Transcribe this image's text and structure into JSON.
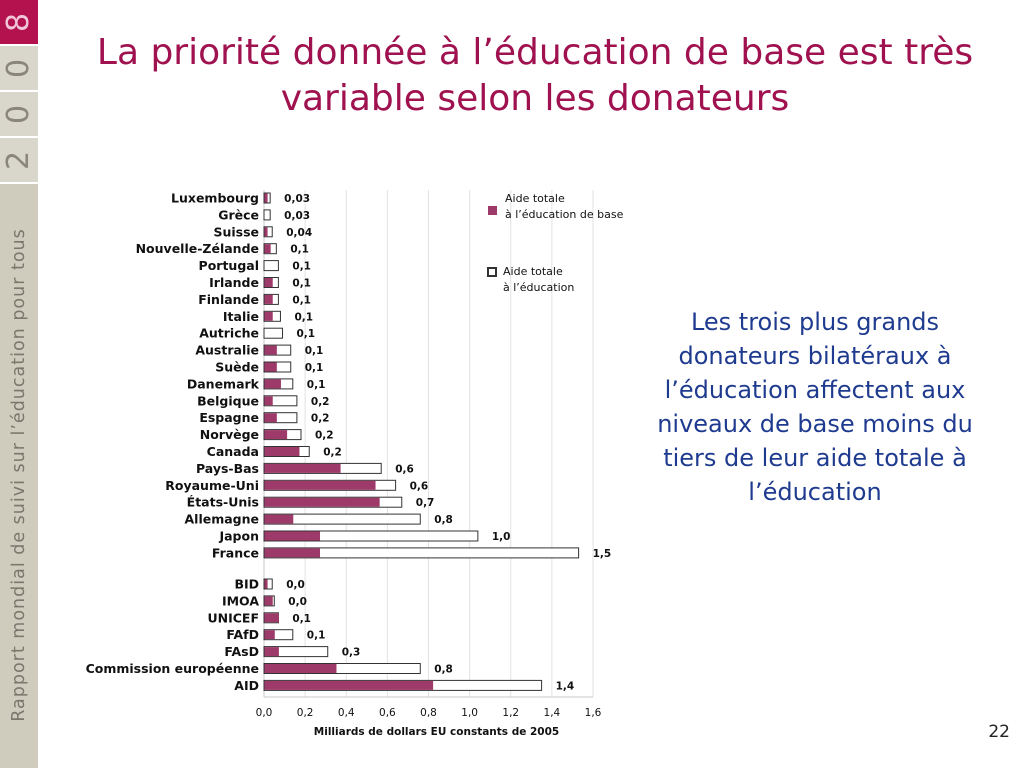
{
  "slide": {
    "title": "La priorité donnée à l’éducation de base est très variable selon les donateurs",
    "side_text": "Les trois plus grands donateurs bilatéraux à l’éducation affectent aux niveaux de base moins du tiers de leur aide totale à l’éducation",
    "page_number": "22"
  },
  "sidebar": {
    "year_digits": [
      "8",
      "0",
      "0",
      "2"
    ],
    "report_name": "Rapport mondial de suivi sur l’éducation pour tous",
    "accent_color": "#b3124f"
  },
  "chart_data": {
    "type": "bar",
    "orientation": "horizontal",
    "xlabel": "Milliards de dollars EU constants de 2005",
    "xlim": [
      0,
      1.6
    ],
    "xticks": [
      "0,0",
      "0,2",
      "0,4",
      "0,6",
      "0,8",
      "1,0",
      "1,2",
      "1,4",
      "1,6"
    ],
    "grid": "vertical",
    "legend_position": "top-right",
    "series": [
      {
        "name": "Aide totale à l’éducation de base",
        "legend_lines": [
          "Aide totale",
          "à l’éducation de base"
        ],
        "color": "#9e3a6a"
      },
      {
        "name": "Aide totale à l’éducation",
        "legend_lines": [
          "Aide totale",
          "à l’éducation"
        ],
        "color": "#ffffff"
      }
    ],
    "groups": [
      {
        "rows": [
          {
            "label": "Luxembourg",
            "total": 0.03,
            "basic": 0.015,
            "value_label": "0,03"
          },
          {
            "label": "Grèce",
            "total": 0.03,
            "basic": 0.0,
            "value_label": "0,03"
          },
          {
            "label": "Suisse",
            "total": 0.04,
            "basic": 0.015,
            "value_label": "0,04"
          },
          {
            "label": "Nouvelle-Zélande",
            "total": 0.06,
            "basic": 0.03,
            "value_label": "0,1"
          },
          {
            "label": "Portugal",
            "total": 0.07,
            "basic": 0.0,
            "value_label": "0,1"
          },
          {
            "label": "Irlande",
            "total": 0.07,
            "basic": 0.04,
            "value_label": "0,1"
          },
          {
            "label": "Finlande",
            "total": 0.07,
            "basic": 0.04,
            "value_label": "0,1"
          },
          {
            "label": "Italie",
            "total": 0.08,
            "basic": 0.04,
            "value_label": "0,1"
          },
          {
            "label": "Autriche",
            "total": 0.09,
            "basic": 0.0,
            "value_label": "0,1"
          },
          {
            "label": "Australie",
            "total": 0.13,
            "basic": 0.06,
            "value_label": "0,1"
          },
          {
            "label": "Suède",
            "total": 0.13,
            "basic": 0.06,
            "value_label": "0,1"
          },
          {
            "label": "Danemark",
            "total": 0.14,
            "basic": 0.08,
            "value_label": "0,1"
          },
          {
            "label": "Belgique",
            "total": 0.16,
            "basic": 0.04,
            "value_label": "0,2"
          },
          {
            "label": "Espagne",
            "total": 0.16,
            "basic": 0.06,
            "value_label": "0,2"
          },
          {
            "label": "Norvège",
            "total": 0.18,
            "basic": 0.11,
            "value_label": "0,2"
          },
          {
            "label": "Canada",
            "total": 0.22,
            "basic": 0.17,
            "value_label": "0,2"
          },
          {
            "label": "Pays-Bas",
            "total": 0.57,
            "basic": 0.37,
            "value_label": "0,6"
          },
          {
            "label": "Royaume-Uni",
            "total": 0.64,
            "basic": 0.54,
            "value_label": "0,6"
          },
          {
            "label": "États-Unis",
            "total": 0.67,
            "basic": 0.56,
            "value_label": "0,7"
          },
          {
            "label": "Allemagne",
            "total": 0.76,
            "basic": 0.14,
            "value_label": "0,8"
          },
          {
            "label": "Japon",
            "total": 1.04,
            "basic": 0.27,
            "value_label": "1,0"
          },
          {
            "label": "France",
            "total": 1.53,
            "basic": 0.27,
            "value_label": "1,5"
          }
        ]
      },
      {
        "rows": [
          {
            "label": "BID",
            "total": 0.04,
            "basic": 0.015,
            "value_label": "0,0"
          },
          {
            "label": "IMOA",
            "total": 0.05,
            "basic": 0.04,
            "value_label": "0,0"
          },
          {
            "label": "UNICEF",
            "total": 0.07,
            "basic": 0.07,
            "value_label": "0,1"
          },
          {
            "label": "FAfD",
            "total": 0.14,
            "basic": 0.05,
            "value_label": "0,1"
          },
          {
            "label": "FAsD",
            "total": 0.31,
            "basic": 0.07,
            "value_label": "0,3"
          },
          {
            "label": "Commission européenne",
            "total": 0.76,
            "basic": 0.35,
            "value_label": "0,8"
          },
          {
            "label": "AID",
            "total": 1.35,
            "basic": 0.82,
            "value_label": "1,4"
          }
        ]
      }
    ]
  }
}
